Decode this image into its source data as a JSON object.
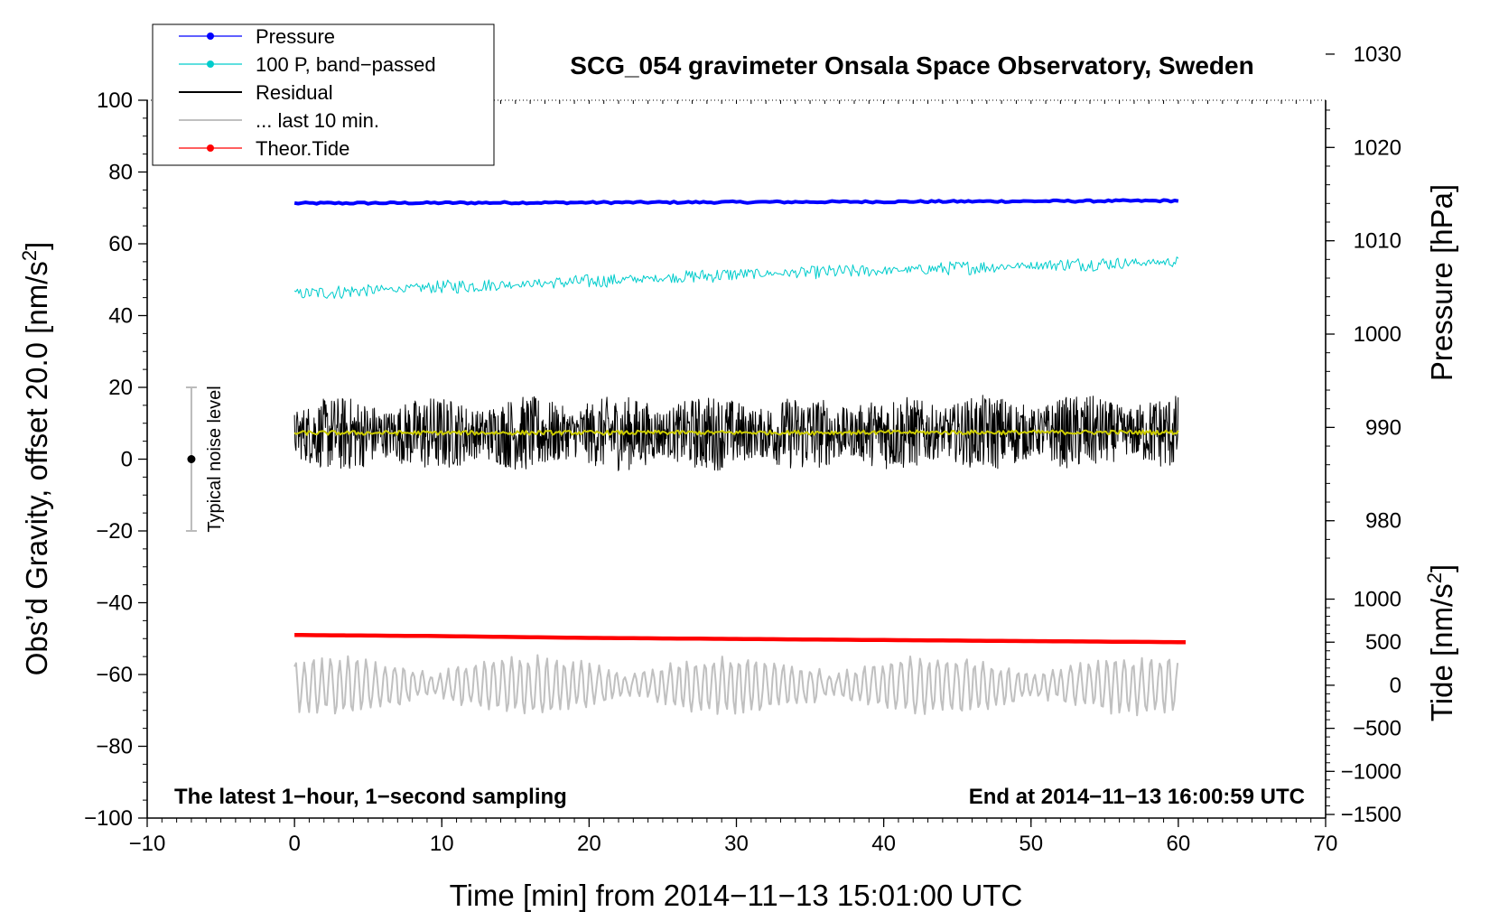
{
  "chart_data": {
    "type": "line",
    "title": "SCG_054 gravimeter Onsala Space Observatory, Sweden",
    "xlabel": "Time [min] from 2014−11−13 15:01:00 UTC",
    "ylabel_left": "Obs’d Gravity, offset 20.0 [nm/s",
    "ylabel_left_sup": "2",
    "ylabel_left_end": "]",
    "ylabel_right_pressure": "Pressure [hPa]",
    "ylabel_right_tide": "Tide [nm/s",
    "ylabel_right_tide_sup": "2",
    "ylabel_right_tide_end": "]",
    "xlim": [
      -10,
      70
    ],
    "ylim": [
      -100,
      100
    ],
    "x_ticks": [
      -10,
      0,
      10,
      20,
      30,
      40,
      50,
      60,
      70
    ],
    "x_tick_labels": [
      "−10",
      "0",
      "10",
      "20",
      "30",
      "40",
      "50",
      "60",
      "70"
    ],
    "y_ticks": [
      -100,
      -80,
      -60,
      -40,
      -20,
      0,
      20,
      40,
      60,
      80,
      100
    ],
    "y_tick_labels": [
      "−100",
      "−80",
      "−60",
      "−40",
      "−20",
      "0",
      "20",
      "40",
      "60",
      "80",
      "100"
    ],
    "pressure_axis": {
      "ticks": [
        980,
        990,
        1000,
        1010,
        1020,
        1030
      ],
      "tick_labels": [
        "980",
        "990",
        "1000",
        "1010",
        "1020",
        "1030"
      ],
      "value_at_y0": 986.6,
      "hpa_per_gravity_unit": 0.3846
    },
    "tide_axis": {
      "ticks": [
        -1500,
        -1000,
        -500,
        0,
        500,
        1000
      ],
      "tick_labels": [
        "−1500",
        "−1000",
        "−500",
        "0",
        "500",
        "1000"
      ],
      "value_at_y0": 2625,
      "tide_per_gravity_unit": 41.67
    },
    "series": [
      {
        "name": "Pressure",
        "color": "#0000ff",
        "x": [
          0,
          30,
          60
        ],
        "y": [
          71.3,
          71.6,
          72.0
        ],
        "amp": 0.25
      },
      {
        "name": "100 P, band−passed",
        "color": "#00cccc",
        "x": [
          0,
          10,
          20,
          30,
          40,
          50,
          60
        ],
        "y": [
          46.0,
          48.0,
          49.5,
          51.5,
          52.5,
          54.0,
          55.0
        ],
        "amp": 2.0
      },
      {
        "name": "Residual",
        "color": "#000000",
        "x": [
          0,
          60
        ],
        "y": [
          7.0,
          7.5
        ],
        "amp": 10.5
      },
      {
        "name": "... last 10 min.",
        "color": "#c0c0c0",
        "x": [
          0,
          60
        ],
        "y": [
          -63,
          -63
        ],
        "amp": 7.5
      },
      {
        "name": "Theor.Tide",
        "color": "#ff0000",
        "x": [
          0,
          10,
          20,
          30,
          40,
          50,
          60.5
        ],
        "y": [
          -49.0,
          -49.3,
          -49.8,
          -50.1,
          -50.4,
          -50.7,
          -51.0
        ],
        "amp": 0
      },
      {
        "name": "smoothed residual",
        "color": "#cccc00",
        "x": [
          0,
          60
        ],
        "y": [
          7.3,
          7.5
        ],
        "amp": 0.6
      }
    ],
    "noise_bar": {
      "label": "Typical noise level",
      "x": -7,
      "y": 0,
      "low": -20,
      "high": 20
    },
    "annotations": {
      "bottom_left": "The latest 1−hour, 1−second sampling",
      "bottom_right": "End at 2014−11−13 16:00:59 UTC"
    },
    "legend": {
      "placement": "top-left",
      "entries": [
        {
          "label": "Pressure",
          "color": "#0000ff",
          "marker": true
        },
        {
          "label": "100 P, band−passed",
          "color": "#00cccc",
          "marker": true
        },
        {
          "label": "Residual",
          "color": "#000000",
          "marker": false
        },
        {
          "label": "... last 10 min.",
          "color": "#c0c0c0",
          "marker": false
        },
        {
          "label": "Theor.Tide",
          "color": "#ff0000",
          "marker": true
        }
      ]
    }
  }
}
